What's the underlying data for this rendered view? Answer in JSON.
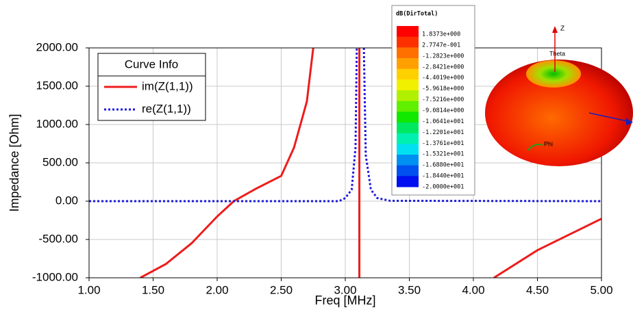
{
  "chart_data": {
    "type": "line",
    "x_label": "Freq [MHz]",
    "y_label": "Impedance [Ohm]",
    "legend_title": "Curve Info",
    "xlim": [
      1,
      5
    ],
    "xticks": [
      {
        "value": 1,
        "label": "1.00"
      },
      {
        "value": 1.5,
        "label": "1.50"
      },
      {
        "value": 2,
        "label": "2.00"
      },
      {
        "value": 2.5,
        "label": "2.50"
      },
      {
        "value": 3,
        "label": "3.00"
      },
      {
        "value": 3.5,
        "label": "3.50"
      },
      {
        "value": 4,
        "label": "4.00"
      },
      {
        "value": 4.5,
        "label": "4.50"
      },
      {
        "value": 5,
        "label": "5.00"
      }
    ],
    "ylim": [
      -1000,
      2000
    ],
    "yticks": [
      {
        "value": -1000,
        "label": "-1000.00"
      },
      {
        "value": -500,
        "label": "-500.00"
      },
      {
        "value": 0,
        "label": "0.00"
      },
      {
        "value": 500,
        "label": "500.00"
      },
      {
        "value": 1000,
        "label": "1000.00"
      },
      {
        "value": 1500,
        "label": "1500.00"
      },
      {
        "value": 2000,
        "label": "2000.00"
      }
    ],
    "grid": true,
    "series": [
      {
        "name": "im(Z(1,1))",
        "color": "#ee1c1c",
        "dash": "solid",
        "x": [
          1.4,
          1.6,
          1.8,
          2.0,
          2.13,
          2.3,
          2.5,
          2.6,
          2.7,
          2.75,
          2.9,
          3.11,
          3.11,
          3.5,
          4.16,
          4.5,
          5.0
        ],
        "values": [
          -1000,
          -820,
          -550,
          -200,
          0,
          160,
          330,
          700,
          1300,
          2000,
          null,
          2000,
          -1000,
          null,
          -1000,
          -640,
          -230
        ]
      },
      {
        "name": "re(Z(1,1))",
        "color": "#1a1adc",
        "dash": "dotted",
        "x": [
          1.0,
          2.95,
          3.0,
          3.05,
          3.08,
          3.09,
          3.12,
          3.145,
          3.16,
          3.2,
          3.25,
          3.35,
          5.0
        ],
        "values": [
          0,
          0,
          40,
          150,
          700,
          2000,
          null,
          2000,
          600,
          150,
          40,
          5,
          0
        ]
      }
    ],
    "colorbar": {
      "title": "dB(DirTotal)",
      "labels": [
        "1.8373e+000",
        "2.7747e-001",
        "-1.2823e+000",
        "-2.8421e+000",
        "-4.4019e+000",
        "-5.9618e+000",
        "-7.5216e+000",
        "-9.0814e+000",
        "-1.0641e+001",
        "-1.2201e+001",
        "-1.3761e+001",
        "-1.5321e+001",
        "-1.6880e+001",
        "-1.8440e+001",
        "-2.0000e+001"
      ],
      "colors": [
        "#ff0000",
        "#ff3000",
        "#ff7000",
        "#ffa000",
        "#ffd000",
        "#f0f000",
        "#b0f000",
        "#60f000",
        "#10e800",
        "#00e860",
        "#00f0b0",
        "#00e0f0",
        "#0090f0",
        "#0050f0",
        "#0010f0"
      ]
    },
    "pattern_labels": {
      "z": "Z",
      "theta": "Theta",
      "phi": "Phi"
    }
  }
}
